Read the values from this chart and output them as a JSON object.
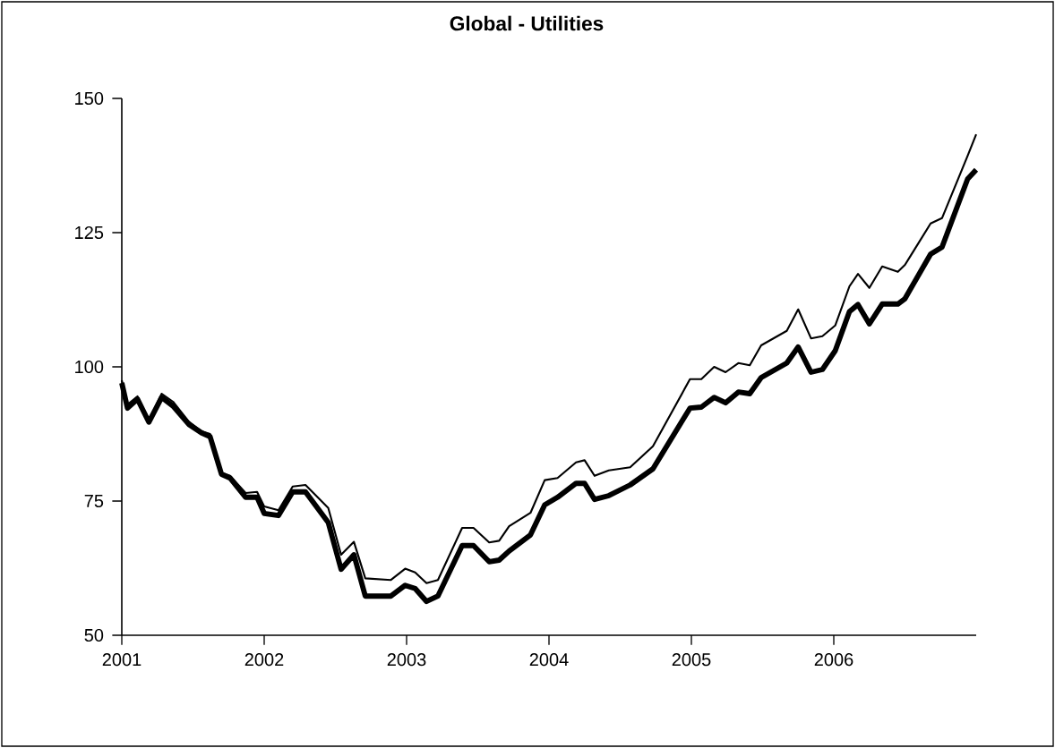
{
  "chart_data": {
    "type": "line",
    "title": "Global - Utilities",
    "x": [
      2001.0,
      2001.04,
      2001.11,
      2001.19,
      2001.28,
      2001.36,
      2001.47,
      2001.56,
      2001.62,
      2001.7,
      2001.76,
      2001.87,
      2001.95,
      2002.0,
      2002.1,
      2002.2,
      2002.29,
      2002.45,
      2002.54,
      2002.63,
      2002.71,
      2002.89,
      2002.99,
      2003.06,
      2003.14,
      2003.22,
      2003.39,
      2003.47,
      2003.58,
      2003.65,
      2003.72,
      2003.87,
      2003.97,
      2004.06,
      2004.19,
      2004.25,
      2004.32,
      2004.42,
      2004.57,
      2004.73,
      2004.99,
      2005.07,
      2005.16,
      2005.24,
      2005.33,
      2005.41,
      2005.49,
      2005.67,
      2005.75,
      2005.84,
      2005.92,
      2006.01,
      2006.11,
      2006.17,
      2006.25,
      2006.34,
      2006.45,
      2006.5,
      2006.68,
      2006.76,
      2006.94,
      2007.0
    ],
    "series": [
      {
        "color": "#000000",
        "values": [
          97,
          92.3,
          94,
          89.7,
          94.3,
          92.7,
          89.3,
          87.7,
          87,
          80,
          79.3,
          75.7,
          75.7,
          72.7,
          72.3,
          76.7,
          76.7,
          71,
          62.3,
          65,
          57.3,
          57.3,
          59.3,
          58.7,
          56.3,
          57.3,
          66.7,
          66.7,
          63.7,
          64,
          65.7,
          68.7,
          74.3,
          75.7,
          78.3,
          78.3,
          75.3,
          76,
          78,
          81,
          92.3,
          92.5,
          94.3,
          93.3,
          95.3,
          95,
          98,
          100.7,
          103.7,
          99,
          99.5,
          103,
          110.3,
          111.6,
          108,
          111.7,
          111.7,
          112.7,
          121,
          122.3,
          135,
          136.7
        ]
      },
      {
        "color": "#000000",
        "values": [
          97.5,
          93,
          94.5,
          90,
          95,
          93.5,
          89.8,
          88,
          87.5,
          80.3,
          79.7,
          76.5,
          76.7,
          74,
          73.3,
          77.7,
          78,
          73.7,
          65,
          67.4,
          60.6,
          60.3,
          62.4,
          61.7,
          59.7,
          60.3,
          70,
          70,
          67.3,
          67.6,
          70.3,
          72.8,
          78.9,
          79.3,
          82.2,
          82.6,
          79.7,
          80.7,
          81.3,
          85.2,
          97.7,
          97.7,
          100,
          99,
          100.7,
          100.3,
          104,
          106.7,
          110.7,
          105.3,
          105.7,
          107.7,
          115,
          117.3,
          114.7,
          118.7,
          117.7,
          119,
          126.7,
          127.7,
          139.3,
          143.3
        ]
      }
    ],
    "xlim": [
      2001,
      2007
    ],
    "xticks": [
      2001,
      2002,
      2003,
      2004,
      2005,
      2006
    ],
    "ylim": [
      50,
      150
    ],
    "yticks": [
      50,
      75,
      100,
      125,
      150
    ],
    "grid": false,
    "legend": false,
    "marker": "none",
    "line_style": "solid"
  }
}
